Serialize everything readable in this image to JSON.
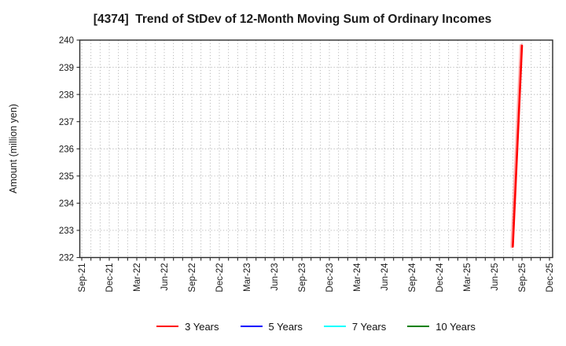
{
  "figure": {
    "title": "[4374]  Trend of StDev of 12-Month Moving Sum of Ordinary Incomes"
  },
  "chart_data": {
    "type": "line",
    "title": "[4374]  Trend of StDev of 12-Month Moving Sum of Ordinary Incomes",
    "xlabel": "",
    "ylabel": "Amount (million yen)",
    "ylim": [
      232,
      240
    ],
    "yticks": [
      232,
      233,
      234,
      235,
      236,
      237,
      238,
      239,
      240
    ],
    "xticks": [
      "Sep-21",
      "Dec-21",
      "Mar-22",
      "Jun-22",
      "Sep-22",
      "Dec-22",
      "Mar-23",
      "Jun-23",
      "Sep-23",
      "Dec-23",
      "Mar-24",
      "Jun-24",
      "Sep-24",
      "Dec-24",
      "Mar-25",
      "Jun-25",
      "Sep-25",
      "Dec-25"
    ],
    "x_minor_interval": "monthly",
    "grid": {
      "style": "dotted",
      "color": "#b0b0b0",
      "horizontal_every": 1,
      "vertical_every": "month"
    },
    "legend_position": "bottom",
    "frame_color": "#2b2b2b",
    "tick_label_color": "#1a1a1a",
    "series": [
      {
        "name": "3 Years",
        "color": "#ff0000",
        "points": [
          {
            "date": "Aug-25",
            "value": 232.4
          },
          {
            "date": "Sep-25",
            "value": 239.8
          }
        ]
      },
      {
        "name": "5 Years",
        "color": "#0000ff",
        "points": []
      },
      {
        "name": "7 Years",
        "color": "#00ffff",
        "points": []
      },
      {
        "name": "10 Years",
        "color": "#008000",
        "points": []
      }
    ]
  }
}
